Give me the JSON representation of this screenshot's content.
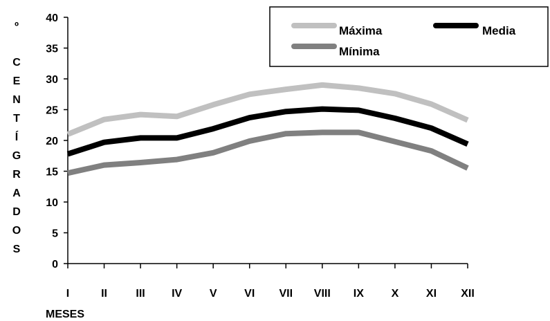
{
  "chart_data": {
    "type": "line",
    "title": "",
    "xlabel": "MESES",
    "ylabel": "º CENTÍGRADOS",
    "ylabel_letters": [
      "º",
      "C",
      "E",
      "N",
      "T",
      "Í",
      "G",
      "R",
      "A",
      "D",
      "O",
      "S"
    ],
    "categories": [
      "I",
      "II",
      "III",
      "IV",
      "V",
      "VI",
      "VII",
      "VIII",
      "IX",
      "X",
      "XI",
      "XII"
    ],
    "ylim": [
      0,
      40
    ],
    "yticks": [
      0,
      5,
      10,
      15,
      20,
      25,
      30,
      35,
      40
    ],
    "grid": false,
    "legend": "top-right",
    "series": [
      {
        "name": "Máxima",
        "color": "#c0c0c0",
        "values": [
          21.0,
          23.4,
          24.2,
          23.9,
          25.8,
          27.5,
          28.3,
          29.0,
          28.5,
          27.6,
          25.9,
          23.3
        ]
      },
      {
        "name": "Media",
        "color": "#000000",
        "values": [
          17.8,
          19.7,
          20.4,
          20.4,
          21.9,
          23.7,
          24.7,
          25.1,
          24.9,
          23.6,
          22.0,
          19.4
        ]
      },
      {
        "name": "Mínima",
        "color": "#808080",
        "values": [
          14.7,
          16.0,
          16.4,
          16.9,
          18.0,
          19.9,
          21.1,
          21.3,
          21.3,
          19.8,
          18.3,
          15.5
        ]
      }
    ]
  }
}
